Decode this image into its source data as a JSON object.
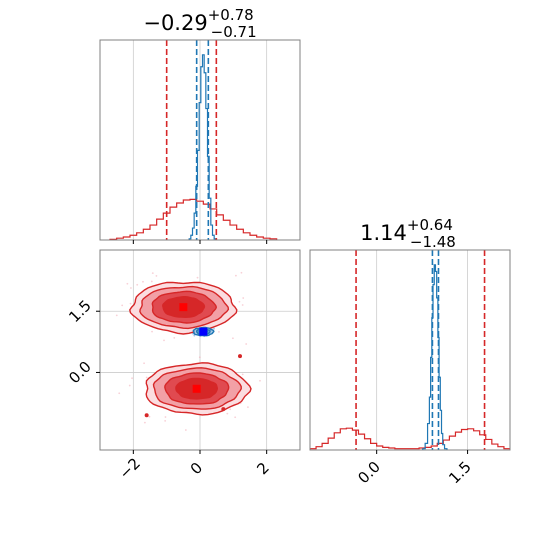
{
  "chart_data": [
    {
      "type": "histogram",
      "panel": "top-left",
      "title": {
        "main": "−0.29",
        "sup": "+0.78",
        "sub": "−0.71"
      },
      "xlim": [
        -3.0,
        3.0
      ],
      "grid": true,
      "series": [
        {
          "color": "#d62728",
          "bins": [
            [
              -2.6,
              0.01
            ],
            [
              -2.4,
              0.03
            ],
            [
              -2.2,
              0.05
            ],
            [
              -2.0,
              0.08
            ],
            [
              -1.8,
              0.12
            ],
            [
              -1.6,
              0.18
            ],
            [
              -1.4,
              0.25
            ],
            [
              -1.2,
              0.35
            ],
            [
              -1.0,
              0.45
            ],
            [
              -0.8,
              0.55
            ],
            [
              -0.6,
              0.62
            ],
            [
              -0.4,
              0.67
            ],
            [
              -0.2,
              0.68
            ],
            [
              0.0,
              0.65
            ],
            [
              0.2,
              0.6
            ],
            [
              0.4,
              0.52
            ],
            [
              0.6,
              0.42
            ],
            [
              0.8,
              0.33
            ],
            [
              1.0,
              0.25
            ],
            [
              1.2,
              0.18
            ],
            [
              1.4,
              0.12
            ],
            [
              1.6,
              0.08
            ],
            [
              1.8,
              0.05
            ],
            [
              2.0,
              0.03
            ],
            [
              2.2,
              0.02
            ]
          ],
          "quantiles": [
            -1.0,
            0.49
          ]
        },
        {
          "color": "#1f77b4",
          "bins": [
            [
              -0.3,
              0.02
            ],
            [
              -0.25,
              0.08
            ],
            [
              -0.2,
              0.2
            ],
            [
              -0.15,
              0.45
            ],
            [
              -0.1,
              0.9
            ],
            [
              -0.05,
              1.5
            ],
            [
              0.0,
              2.3
            ],
            [
              0.05,
              2.9
            ],
            [
              0.1,
              3.1
            ],
            [
              0.15,
              2.8
            ],
            [
              0.2,
              2.2
            ],
            [
              0.25,
              1.4
            ],
            [
              0.3,
              0.7
            ],
            [
              0.35,
              0.25
            ],
            [
              0.4,
              0.08
            ],
            [
              0.45,
              0.02
            ]
          ],
          "quantiles": [
            -0.1,
            0.25
          ]
        }
      ]
    },
    {
      "type": "contour",
      "panel": "bottom-left",
      "xlim": [
        -3.0,
        3.0
      ],
      "ylim": [
        -1.9,
        3.0
      ],
      "xticks": [
        "−2",
        "0",
        "2"
      ],
      "yticks": [
        "0.0",
        "1.5"
      ],
      "grid": true,
      "series": [
        {
          "color": "#d62728",
          "modes": [
            [
              -0.5,
              1.6
            ],
            [
              -0.1,
              -0.4
            ]
          ],
          "marker": "square"
        },
        {
          "color": "#1f77b4",
          "modes": [
            [
              0.1,
              1.0
            ]
          ],
          "marker": "square"
        }
      ]
    },
    {
      "type": "histogram",
      "panel": "bottom-right",
      "title": {
        "main": "1.14",
        "sup": "+0.64",
        "sub": "−1.48"
      },
      "xlim": [
        -1.1,
        2.2
      ],
      "xticks": [
        "0.0",
        "1.5"
      ],
      "grid": true,
      "series": [
        {
          "color": "#d62728",
          "bins": [
            [
              -1.05,
              0.02
            ],
            [
              -0.95,
              0.05
            ],
            [
              -0.85,
              0.1
            ],
            [
              -0.75,
              0.18
            ],
            [
              -0.65,
              0.26
            ],
            [
              -0.55,
              0.32
            ],
            [
              -0.45,
              0.33
            ],
            [
              -0.35,
              0.3
            ],
            [
              -0.25,
              0.24
            ],
            [
              -0.15,
              0.17
            ],
            [
              -0.05,
              0.1
            ],
            [
              0.05,
              0.06
            ],
            [
              0.15,
              0.04
            ],
            [
              0.25,
              0.03
            ],
            [
              0.35,
              0.02
            ],
            [
              0.45,
              0.02
            ],
            [
              0.55,
              0.02
            ],
            [
              0.65,
              0.02
            ],
            [
              0.75,
              0.03
            ],
            [
              0.85,
              0.04
            ],
            [
              0.95,
              0.06
            ],
            [
              1.05,
              0.1
            ],
            [
              1.15,
              0.15
            ],
            [
              1.25,
              0.21
            ],
            [
              1.35,
              0.27
            ],
            [
              1.45,
              0.31
            ],
            [
              1.55,
              0.32
            ],
            [
              1.65,
              0.29
            ],
            [
              1.75,
              0.23
            ],
            [
              1.85,
              0.16
            ],
            [
              1.95,
              0.09
            ],
            [
              2.05,
              0.05
            ],
            [
              2.15,
              0.02
            ]
          ],
          "quantiles": [
            -0.34,
            1.78
          ]
        },
        {
          "color": "#1f77b4",
          "bins": [
            [
              0.78,
              0.02
            ],
            [
              0.82,
              0.1
            ],
            [
              0.86,
              0.4
            ],
            [
              0.88,
              0.8
            ],
            [
              0.9,
              1.4
            ],
            [
              0.92,
              2.0
            ],
            [
              0.94,
              2.5
            ],
            [
              0.96,
              2.8
            ],
            [
              0.98,
              2.7
            ],
            [
              1.0,
              2.3
            ],
            [
              1.02,
              1.7
            ],
            [
              1.04,
              1.1
            ],
            [
              1.06,
              0.6
            ],
            [
              1.08,
              0.25
            ],
            [
              1.1,
              0.08
            ],
            [
              1.14,
              0.02
            ]
          ],
          "quantiles": [
            0.92,
            1.02
          ]
        }
      ]
    }
  ]
}
